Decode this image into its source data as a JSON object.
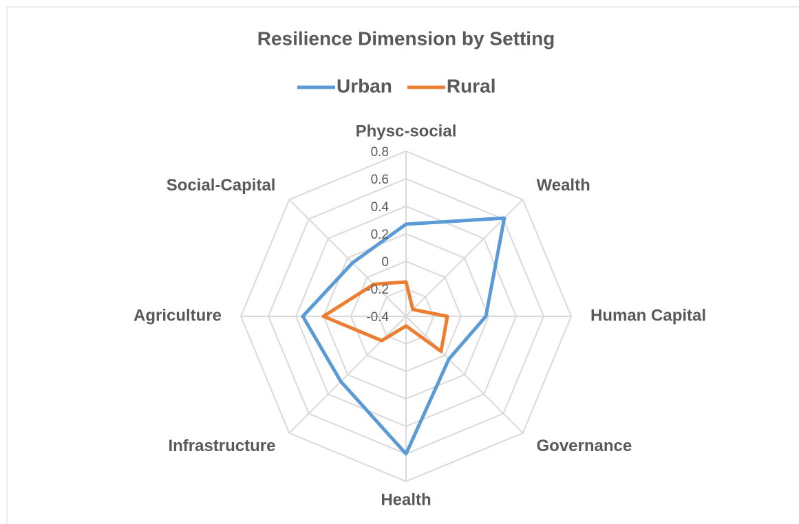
{
  "chart_data": {
    "type": "radar",
    "title": "Resilience  Dimension by  Setting",
    "categories": [
      "Physc-social",
      "Wealth",
      "Human Capital",
      "Governance",
      "Health",
      "Infrastructure",
      "Agriculture",
      "Social-Capital"
    ],
    "series": [
      {
        "name": "Urban",
        "color": "#5b9bd5",
        "values": [
          0.27,
          0.61,
          0.18,
          0.04,
          0.6,
          0.27,
          0.35,
          0.15
        ]
      },
      {
        "name": "Rural",
        "color": "#ed7d31",
        "values": [
          -0.15,
          -0.33,
          -0.1,
          -0.04,
          -0.33,
          -0.15,
          0.2,
          -0.07
        ]
      }
    ],
    "ylim": [
      -0.4,
      0.8
    ],
    "yticks": [
      -0.4,
      -0.2,
      0,
      0.2,
      0.4,
      0.6,
      0.8
    ],
    "grid": true,
    "legend": "top"
  }
}
